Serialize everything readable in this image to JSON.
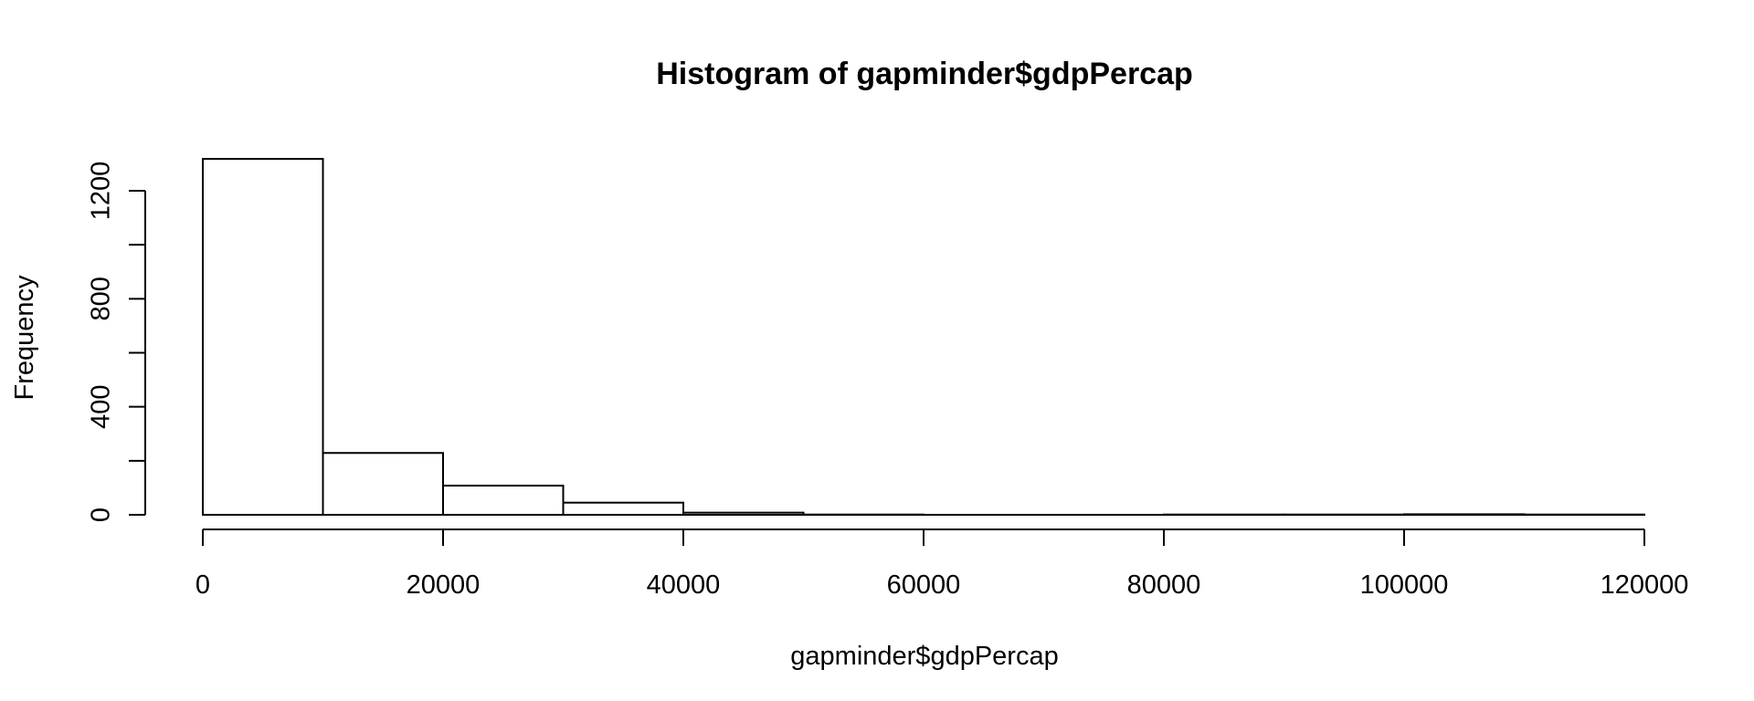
{
  "chart_data": {
    "type": "bar",
    "title": "Histogram of gapminder$gdpPercap",
    "xlabel": "gapminder$gdpPercap",
    "ylabel": "Frequency",
    "xlim": [
      0,
      120000
    ],
    "ylim": [
      0,
      1200
    ],
    "x_ticks": [
      "0",
      "20000",
      "40000",
      "60000",
      "80000",
      "100000",
      "120000"
    ],
    "y_ticks": [
      "0",
      "400",
      "800",
      "1200"
    ],
    "bins": [
      {
        "x0": 0,
        "x1": 10000,
        "count": 1318
      },
      {
        "x0": 10000,
        "x1": 20000,
        "count": 229
      },
      {
        "x0": 20000,
        "x1": 30000,
        "count": 108
      },
      {
        "x0": 30000,
        "x1": 40000,
        "count": 45
      },
      {
        "x0": 40000,
        "x1": 50000,
        "count": 8
      },
      {
        "x0": 50000,
        "x1": 60000,
        "count": 1
      },
      {
        "x0": 60000,
        "x1": 70000,
        "count": 0
      },
      {
        "x0": 70000,
        "x1": 80000,
        "count": 0
      },
      {
        "x0": 80000,
        "x1": 90000,
        "count": 1
      },
      {
        "x0": 90000,
        "x1": 100000,
        "count": 1
      },
      {
        "x0": 100000,
        "x1": 110000,
        "count": 2
      },
      {
        "x0": 110000,
        "x1": 120000,
        "count": 1
      }
    ],
    "grid": false,
    "legend": "none"
  }
}
